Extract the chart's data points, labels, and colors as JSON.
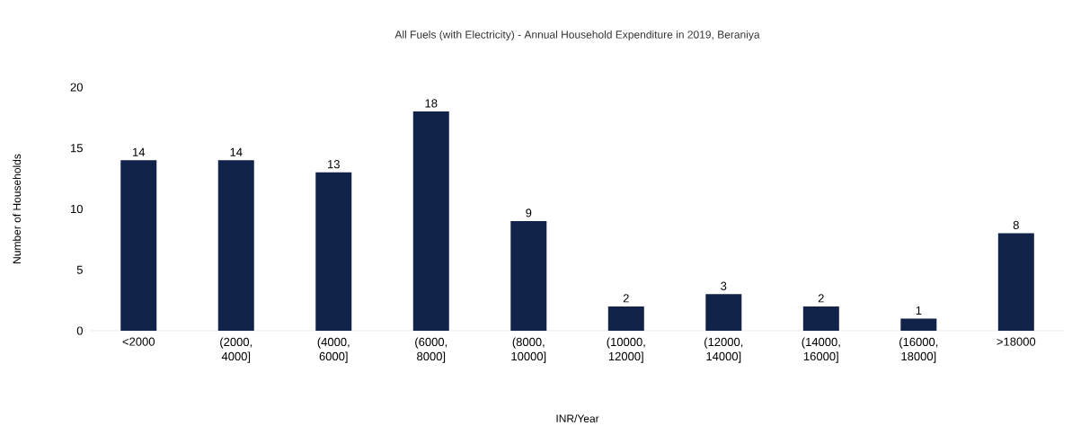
{
  "chart_data": {
    "type": "bar",
    "title": "All Fuels (with Electricity) - Annual Household Expenditure in 2019, Beraniya",
    "xlabel": "INR/Year",
    "ylabel": "Number of Households",
    "categories": [
      "<2000",
      "(2000, 4000]",
      "(4000, 6000]",
      "(6000, 8000]",
      "(8000, 10000]",
      "(10000, 12000]",
      "(12000, 14000]",
      "(14000, 16000]",
      "(16000, 18000]",
      ">18000"
    ],
    "values": [
      14,
      14,
      13,
      18,
      9,
      2,
      3,
      2,
      1,
      8
    ],
    "color": "#12234a",
    "ylim": [
      0,
      20
    ],
    "yticks": [
      0,
      5,
      10,
      15,
      20
    ],
    "data_labels": true
  }
}
